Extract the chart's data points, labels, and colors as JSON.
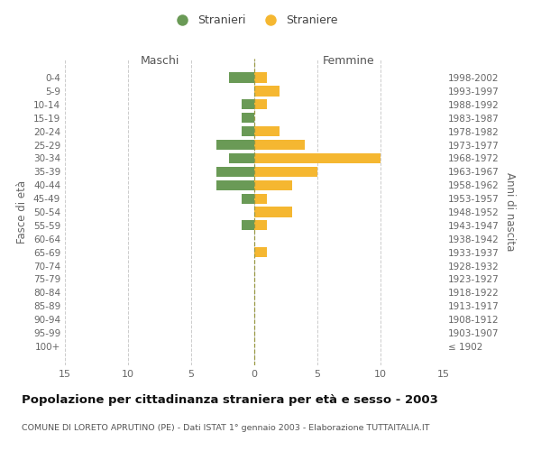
{
  "age_groups": [
    "0-4",
    "5-9",
    "10-14",
    "15-19",
    "20-24",
    "25-29",
    "30-34",
    "35-39",
    "40-44",
    "45-49",
    "50-54",
    "55-59",
    "60-64",
    "65-69",
    "70-74",
    "75-79",
    "80-84",
    "85-89",
    "90-94",
    "95-99",
    "100+"
  ],
  "birth_years": [
    "1998-2002",
    "1993-1997",
    "1988-1992",
    "1983-1987",
    "1978-1982",
    "1973-1977",
    "1968-1972",
    "1963-1967",
    "1958-1962",
    "1953-1957",
    "1948-1952",
    "1943-1947",
    "1938-1942",
    "1933-1937",
    "1928-1932",
    "1923-1927",
    "1918-1922",
    "1913-1917",
    "1908-1912",
    "1903-1907",
    "≤ 1902"
  ],
  "males": [
    2,
    0,
    1,
    1,
    1,
    3,
    2,
    3,
    3,
    1,
    0,
    1,
    0,
    0,
    0,
    0,
    0,
    0,
    0,
    0,
    0
  ],
  "females": [
    1,
    2,
    1,
    0,
    2,
    4,
    10,
    5,
    3,
    1,
    3,
    1,
    0,
    1,
    0,
    0,
    0,
    0,
    0,
    0,
    0
  ],
  "male_color": "#6a9a56",
  "female_color": "#f5b731",
  "background_color": "#ffffff",
  "grid_color": "#cccccc",
  "title": "Popolazione per cittadinanza straniera per età e sesso - 2003",
  "subtitle": "COMUNE DI LORETO APRUTINO (PE) - Dati ISTAT 1° gennaio 2003 - Elaborazione TUTTAITALIA.IT",
  "xlabel_left": "Maschi",
  "xlabel_right": "Femmine",
  "ylabel_left": "Fasce di età",
  "ylabel_right": "Anni di nascita",
  "legend_male": "Stranieri",
  "legend_female": "Straniere",
  "xlim": 15
}
